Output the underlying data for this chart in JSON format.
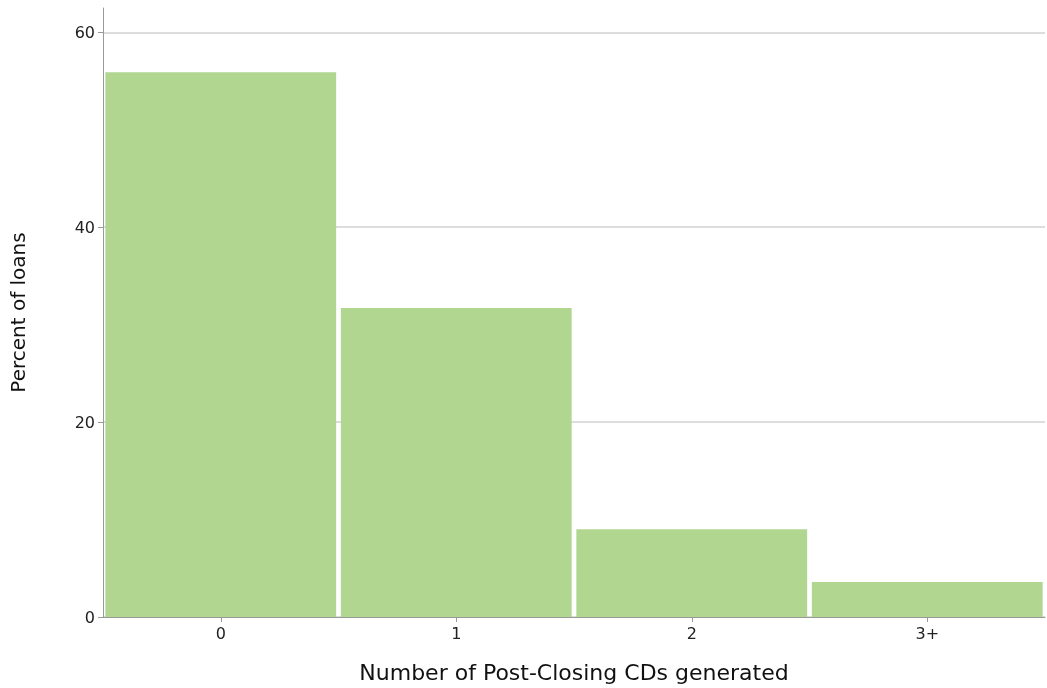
{
  "chart_data": {
    "type": "bar",
    "xlabel": "Number of Post-Closing CDs generated",
    "ylabel": "Percent of loans",
    "categories": [
      "0",
      "1",
      "2",
      "3+"
    ],
    "values": [
      55.9,
      31.7,
      9.0,
      3.6
    ],
    "color": "#b0d690",
    "ylim": [
      0,
      62.5
    ],
    "yticks": [
      0,
      20,
      40,
      60
    ],
    "grid": "y"
  }
}
